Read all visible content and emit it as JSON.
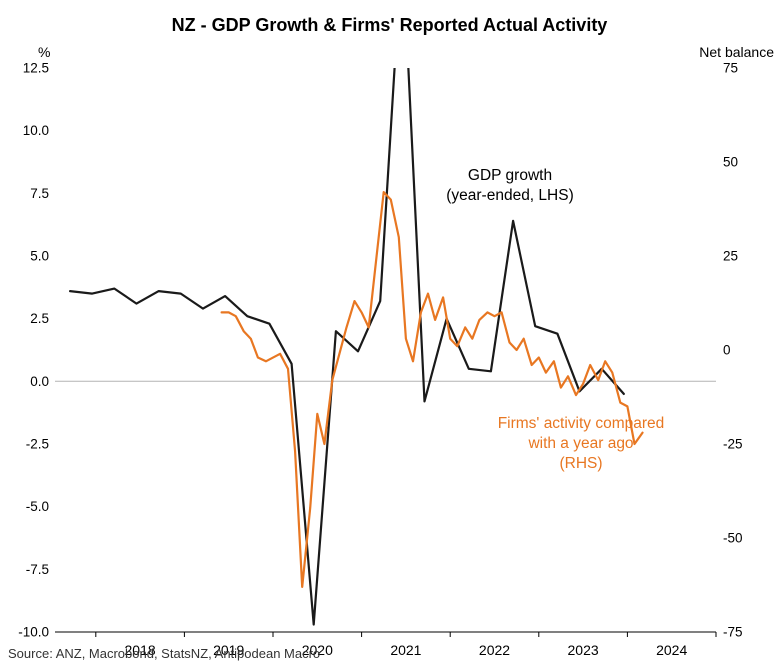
{
  "chart_data": {
    "type": "line",
    "title": "NZ - GDP Growth & Firms' Reported Actual Activity",
    "source": "Source: ANZ, Macrobond, StatsNZ, Antipodean Macro",
    "grid": "zero-line-only",
    "legend_position": "inline-annotations",
    "left_axis": {
      "unit": "%",
      "min": -10.0,
      "max": 12.5,
      "ticks": [
        {
          "v": 12.5,
          "label": "12.5"
        },
        {
          "v": 10.0,
          "label": "10.0"
        },
        {
          "v": 7.5,
          "label": "7.5"
        },
        {
          "v": 5.0,
          "label": "5.0"
        },
        {
          "v": 2.5,
          "label": "2.5"
        },
        {
          "v": 0.0,
          "label": "0.0"
        },
        {
          "v": -2.5,
          "label": "-2.5"
        },
        {
          "v": -5.0,
          "label": "-5.0"
        },
        {
          "v": -7.5,
          "label": "-7.5"
        },
        {
          "v": -10.0,
          "label": "-10.0"
        }
      ]
    },
    "right_axis": {
      "unit": "Net balance",
      "min": -75,
      "max": 75,
      "ticks": [
        {
          "v": 75,
          "label": "75"
        },
        {
          "v": 50,
          "label": "50"
        },
        {
          "v": 25,
          "label": "25"
        },
        {
          "v": 0,
          "label": "0"
        },
        {
          "v": -25,
          "label": "-25"
        },
        {
          "v": -50,
          "label": "-50"
        },
        {
          "v": -75,
          "label": "-75"
        }
      ]
    },
    "x_axis": {
      "min": 2017.54,
      "max": 2025.0,
      "boundary_ticks": [
        2018,
        2019,
        2020,
        2021,
        2022,
        2023,
        2024,
        2025
      ],
      "year_labels": [
        {
          "v": 2018.5,
          "text": "2018"
        },
        {
          "v": 2019.5,
          "text": "2019"
        },
        {
          "v": 2020.5,
          "text": "2020"
        },
        {
          "v": 2021.5,
          "text": "2021"
        },
        {
          "v": 2022.5,
          "text": "2022"
        },
        {
          "v": 2023.5,
          "text": "2023"
        },
        {
          "v": 2024.5,
          "text": "2024"
        }
      ]
    },
    "series": [
      {
        "id": "gdp",
        "name": "GDP growth (year-ended, LHS)",
        "axis": "left",
        "color": "#1a1a1a",
        "x": [
          2017.71,
          2017.96,
          2018.21,
          2018.46,
          2018.71,
          2018.96,
          2019.21,
          2019.46,
          2019.71,
          2019.96,
          2020.21,
          2020.46,
          2020.71,
          2020.96,
          2021.21,
          2021.46,
          2021.71,
          2021.96,
          2022.21,
          2022.46,
          2022.71,
          2022.96,
          2023.21,
          2023.46,
          2023.71,
          2023.96
        ],
        "y": [
          3.6,
          3.5,
          3.7,
          3.1,
          3.6,
          3.5,
          2.9,
          3.4,
          2.6,
          2.3,
          0.7,
          -9.7,
          2.0,
          1.2,
          3.2,
          17.5,
          -0.8,
          2.5,
          0.5,
          0.4,
          6.4,
          2.2,
          1.9,
          -0.4,
          0.5,
          -0.5
        ]
      },
      {
        "id": "firms",
        "name": "Firms' activity compared with a year ago (RHS)",
        "axis": "right",
        "color": "#E87722",
        "x": [
          2019.42,
          2019.5,
          2019.58,
          2019.67,
          2019.75,
          2019.83,
          2019.92,
          2020.08,
          2020.17,
          2020.25,
          2020.33,
          2020.42,
          2020.5,
          2020.58,
          2020.67,
          2020.75,
          2020.83,
          2020.92,
          2021.0,
          2021.08,
          2021.17,
          2021.25,
          2021.33,
          2021.42,
          2021.5,
          2021.58,
          2021.67,
          2021.75,
          2021.83,
          2021.92,
          2022.0,
          2022.08,
          2022.17,
          2022.25,
          2022.33,
          2022.42,
          2022.5,
          2022.58,
          2022.67,
          2022.75,
          2022.83,
          2022.92,
          2023.0,
          2023.08,
          2023.17,
          2023.25,
          2023.33,
          2023.42,
          2023.5,
          2023.58,
          2023.67,
          2023.75,
          2023.83,
          2023.92,
          2024.0,
          2024.08,
          2024.17
        ],
        "y": [
          10,
          10,
          9,
          5,
          3,
          -2,
          -3,
          -1,
          -5,
          -27,
          -63,
          -42,
          -17,
          -25,
          -8,
          -1,
          6,
          13,
          10,
          6,
          25,
          42,
          40,
          30,
          3,
          -3,
          10,
          15,
          8,
          14,
          3,
          1,
          6,
          3,
          8,
          10,
          9,
          10,
          2,
          0,
          3,
          -4,
          -2,
          -6,
          -3,
          -10,
          -7,
          -12,
          -9,
          -4,
          -8,
          -3,
          -6,
          -14,
          -15,
          -25,
          -22
        ]
      }
    ],
    "annotations": [
      {
        "id": "gdp",
        "color": "#000000",
        "lines": [
          "GDP growth",
          "(year-ended, LHS)"
        ]
      },
      {
        "id": "firms",
        "color": "#E87722",
        "lines": [
          "Firms' activity compared",
          "with a year ago",
          "(RHS)"
        ]
      }
    ]
  }
}
